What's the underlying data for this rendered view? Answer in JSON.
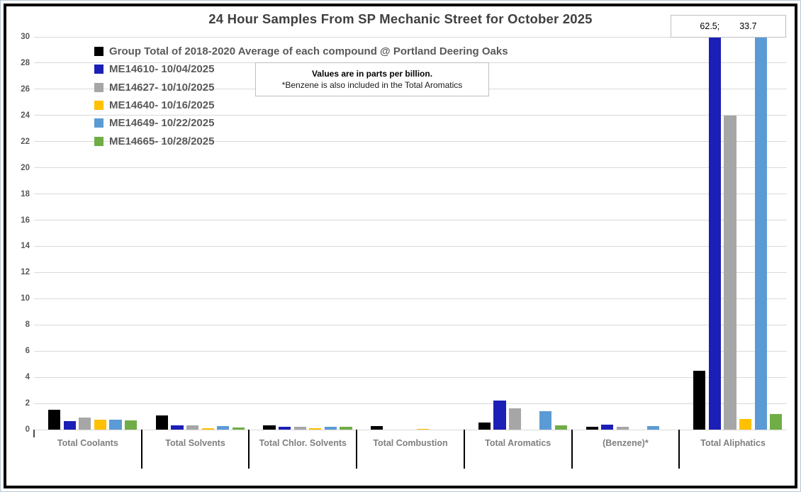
{
  "window": {
    "edge_color": "#b5c8d6",
    "frame_color": "#000000",
    "background": "#ffffff"
  },
  "chart_data": {
    "type": "bar",
    "title": "24 Hour Samples From SP Mechanic Street for October 2025",
    "units": "parts per billion",
    "categories": [
      "Total Coolants",
      "Total Solvents",
      "Total Chlor. Solvents",
      "Total Combustion",
      "Total Aromatics",
      "(Benzene)*",
      "Total Aliphatics"
    ],
    "series": [
      {
        "name": "Group Total of 2018-2020 Average of each compound @ Portland Deering Oaks",
        "color": "#000000",
        "values": [
          1.5,
          1.1,
          0.35,
          0.25,
          0.55,
          0.2,
          4.5
        ]
      },
      {
        "name": "ME14610- 10/04/2025",
        "color": "#1B1FB5",
        "values": [
          0.65,
          0.3,
          0.2,
          0,
          2.2,
          0.4,
          62.5
        ]
      },
      {
        "name": "ME14627- 10/10/2025",
        "color": "#A6A6A6",
        "values": [
          0.9,
          0.3,
          0.2,
          0,
          1.6,
          0.2,
          24
        ]
      },
      {
        "name": "ME14640- 10/16/2025",
        "color": "#FFC000",
        "values": [
          0.75,
          0.12,
          0.1,
          0.08,
          0,
          0,
          0.8
        ]
      },
      {
        "name": "ME14649- 10/22/2025",
        "color": "#5B9BD5",
        "values": [
          0.75,
          0.25,
          0.2,
          0,
          1.4,
          0.25,
          33.7
        ]
      },
      {
        "name": "ME14665- 10/28/2025",
        "color": "#70AD47",
        "values": [
          0.7,
          0.15,
          0.2,
          0,
          0.3,
          0,
          1.2
        ]
      }
    ],
    "ylim": [
      0,
      30
    ],
    "yticks": [
      0,
      2,
      4,
      6,
      8,
      10,
      12,
      14,
      16,
      18,
      20,
      22,
      24,
      26,
      28,
      30
    ],
    "grid": true,
    "legend_position": "top-left",
    "annotation_box": {
      "left": "62.5;",
      "right": "33.7"
    }
  },
  "note_box": {
    "line1": "Values are in parts per billion.",
    "line2": "*Benzene is also included in the Total Aromatics"
  }
}
